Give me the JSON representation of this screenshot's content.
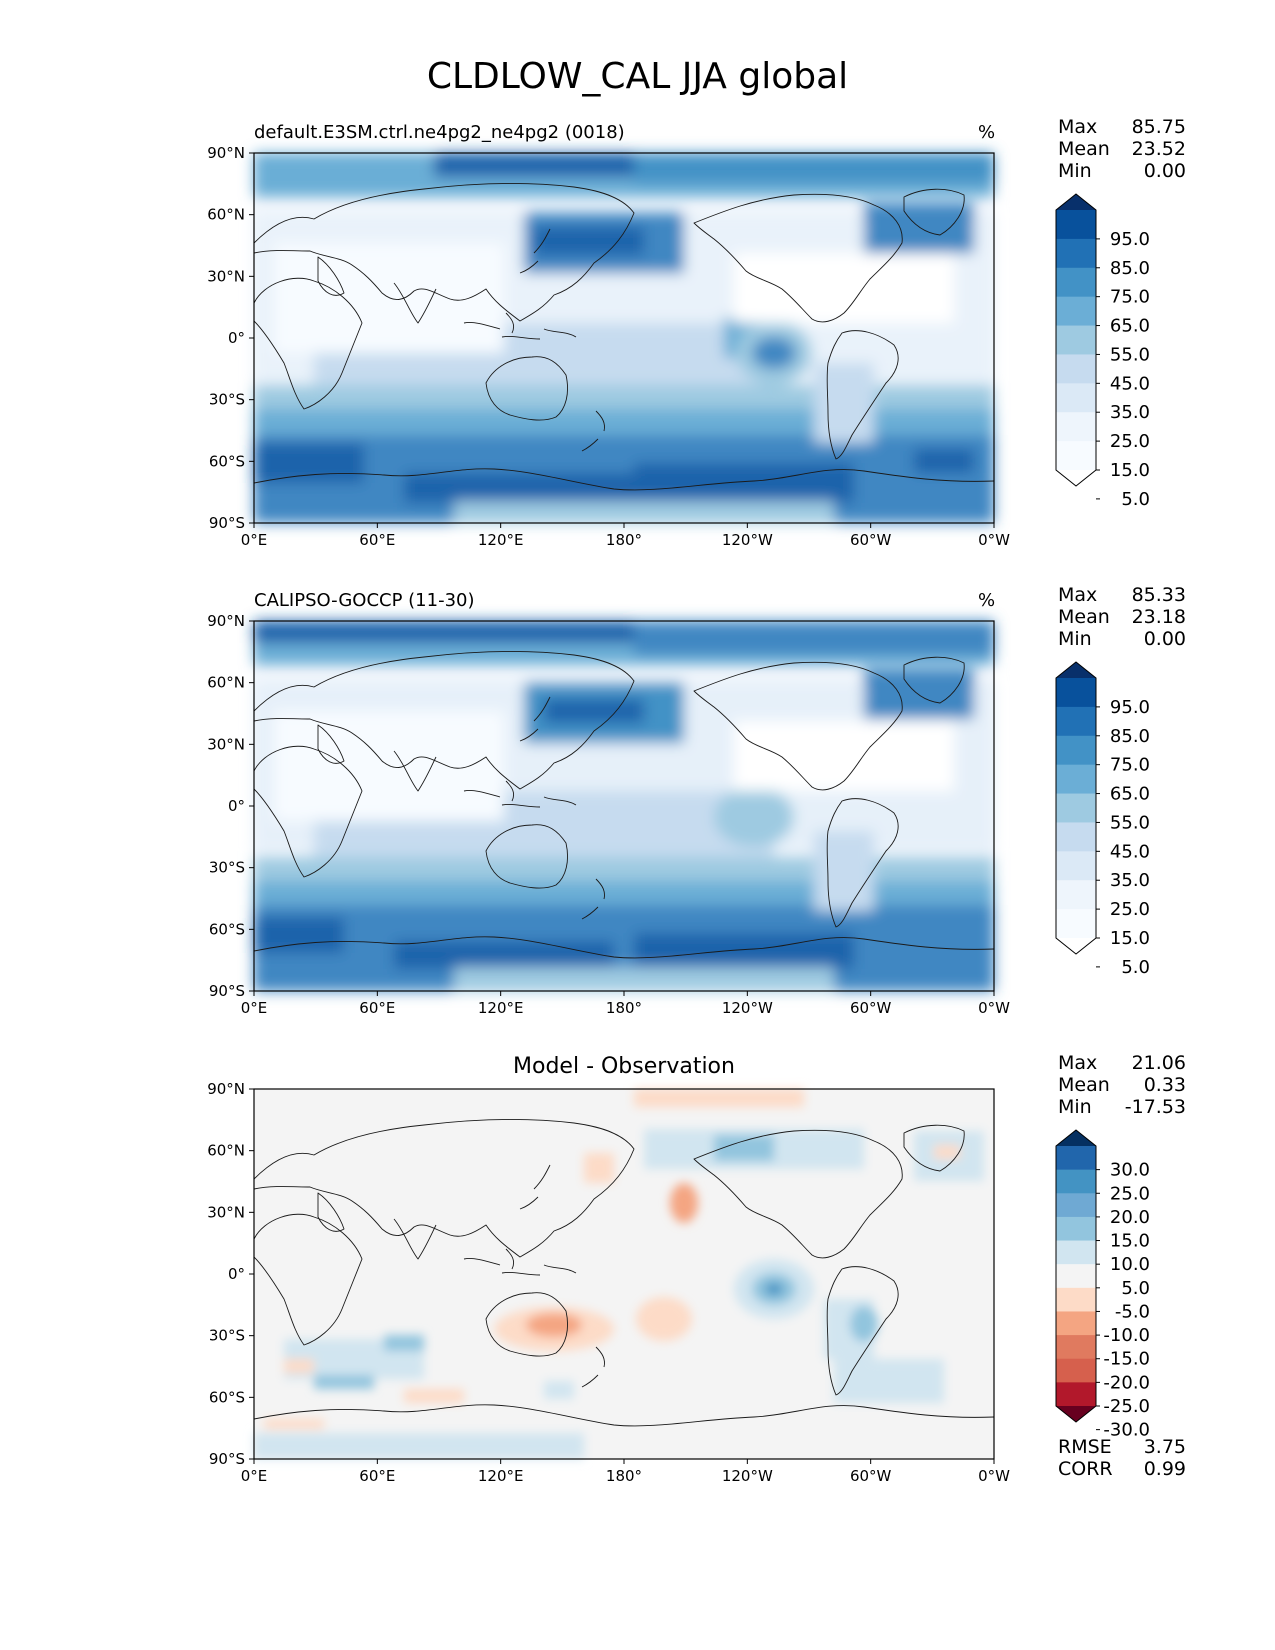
{
  "title": "CLDLOW_CAL JJA global",
  "x_ticks": [
    "0°E",
    "60°E",
    "120°E",
    "180°",
    "120°W",
    "60°W",
    "0°W"
  ],
  "y_ticks": [
    "90°N",
    "60°N",
    "30°N",
    "0°",
    "30°S",
    "60°S",
    "90°S"
  ],
  "panels": [
    {
      "label": "default.E3SM.ctrl.ne4pg2_ne4pg2 (0018)",
      "units": "%",
      "stats": [
        {
          "k": "Max",
          "v": "85.75"
        },
        {
          "k": "Mean",
          "v": "23.52"
        },
        {
          "k": "Min",
          "v": "0.00"
        }
      ],
      "colorbar": {
        "labels": [
          "95.0",
          "85.0",
          "75.0",
          "65.0",
          "55.0",
          "45.0",
          "35.0",
          "25.0",
          "15.0",
          "5.0"
        ],
        "colors": [
          "#08306b",
          "#08519c",
          "#2171b5",
          "#4292c6",
          "#6baed6",
          "#9ecae1",
          "#c6dbef",
          "#dbe9f6",
          "#eef5fc",
          "#f7fbff",
          "#ffffff"
        ]
      }
    },
    {
      "label": "CALIPSO-GOCCP (11-30)",
      "units": "%",
      "stats": [
        {
          "k": "Max",
          "v": "85.33"
        },
        {
          "k": "Mean",
          "v": "23.18"
        },
        {
          "k": "Min",
          "v": "0.00"
        }
      ],
      "colorbar": {
        "labels": [
          "95.0",
          "85.0",
          "75.0",
          "65.0",
          "55.0",
          "45.0",
          "35.0",
          "25.0",
          "15.0",
          "5.0"
        ],
        "colors": [
          "#08306b",
          "#08519c",
          "#2171b5",
          "#4292c6",
          "#6baed6",
          "#9ecae1",
          "#c6dbef",
          "#dbe9f6",
          "#eef5fc",
          "#f7fbff",
          "#ffffff"
        ]
      }
    },
    {
      "label": "Model - Observation",
      "stats": [
        {
          "k": "Max",
          "v": "21.06"
        },
        {
          "k": "Mean",
          "v": "0.33"
        },
        {
          "k": "Min",
          "v": "-17.53"
        }
      ],
      "metrics": [
        {
          "k": "RMSE",
          "v": "3.75"
        },
        {
          "k": "CORR",
          "v": "0.99"
        }
      ],
      "colorbar": {
        "labels": [
          "30.0",
          "25.0",
          "20.0",
          "15.0",
          "10.0",
          "5.0",
          "-5.0",
          "-10.0",
          "-15.0",
          "-20.0",
          "-25.0",
          "-30.0"
        ],
        "colors": [
          "#053061",
          "#2166ac",
          "#4393c3",
          "#6fa9d3",
          "#92c5de",
          "#d1e5f0",
          "#f4f4f4",
          "#fddbc7",
          "#f4a582",
          "#e07a5f",
          "#d6604d",
          "#b2182b",
          "#67001f"
        ]
      }
    }
  ]
}
